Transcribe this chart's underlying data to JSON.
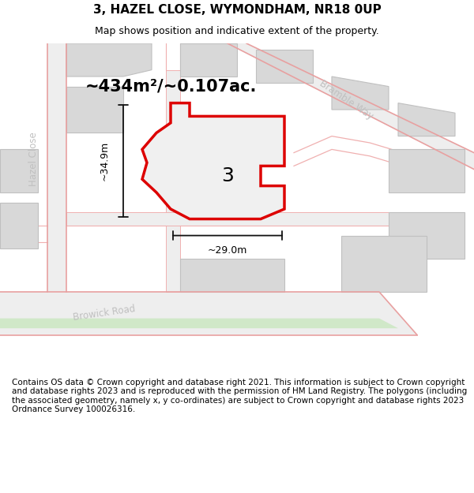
{
  "title": "3, HAZEL CLOSE, WYMONDHAM, NR18 0UP",
  "subtitle": "Map shows position and indicative extent of the property.",
  "footer": "Contains OS data © Crown copyright and database right 2021. This information is subject to Crown copyright and database rights 2023 and is reproduced with the permission of HM Land Registry. The polygons (including the associated geometry, namely x, y co-ordinates) are subject to Crown copyright and database rights 2023 Ordnance Survey 100026316.",
  "area_label": "~434m²/~0.107ac.",
  "width_label": "~29.0m",
  "height_label": "~34.9m",
  "plot_number": "3",
  "bg_color": "#ffffff",
  "map_bg": "#f7f7f7",
  "plot_fill": "#f0f0f0",
  "plot_edge": "#dd0000",
  "building_fill": "#d8d8d8",
  "building_edge": "#c0c0c0",
  "road_pink": "#f0b0b0",
  "road_pink2": "#e8a0a0",
  "street_color": "#c0c0c0",
  "green_fill": "#d0e8c8",
  "dim_color": "#111111",
  "title_fontsize": 11,
  "subtitle_fontsize": 9,
  "footer_fontsize": 7.5,
  "area_fontsize": 15,
  "plot_num_fontsize": 18,
  "street_fontsize": 8.5
}
